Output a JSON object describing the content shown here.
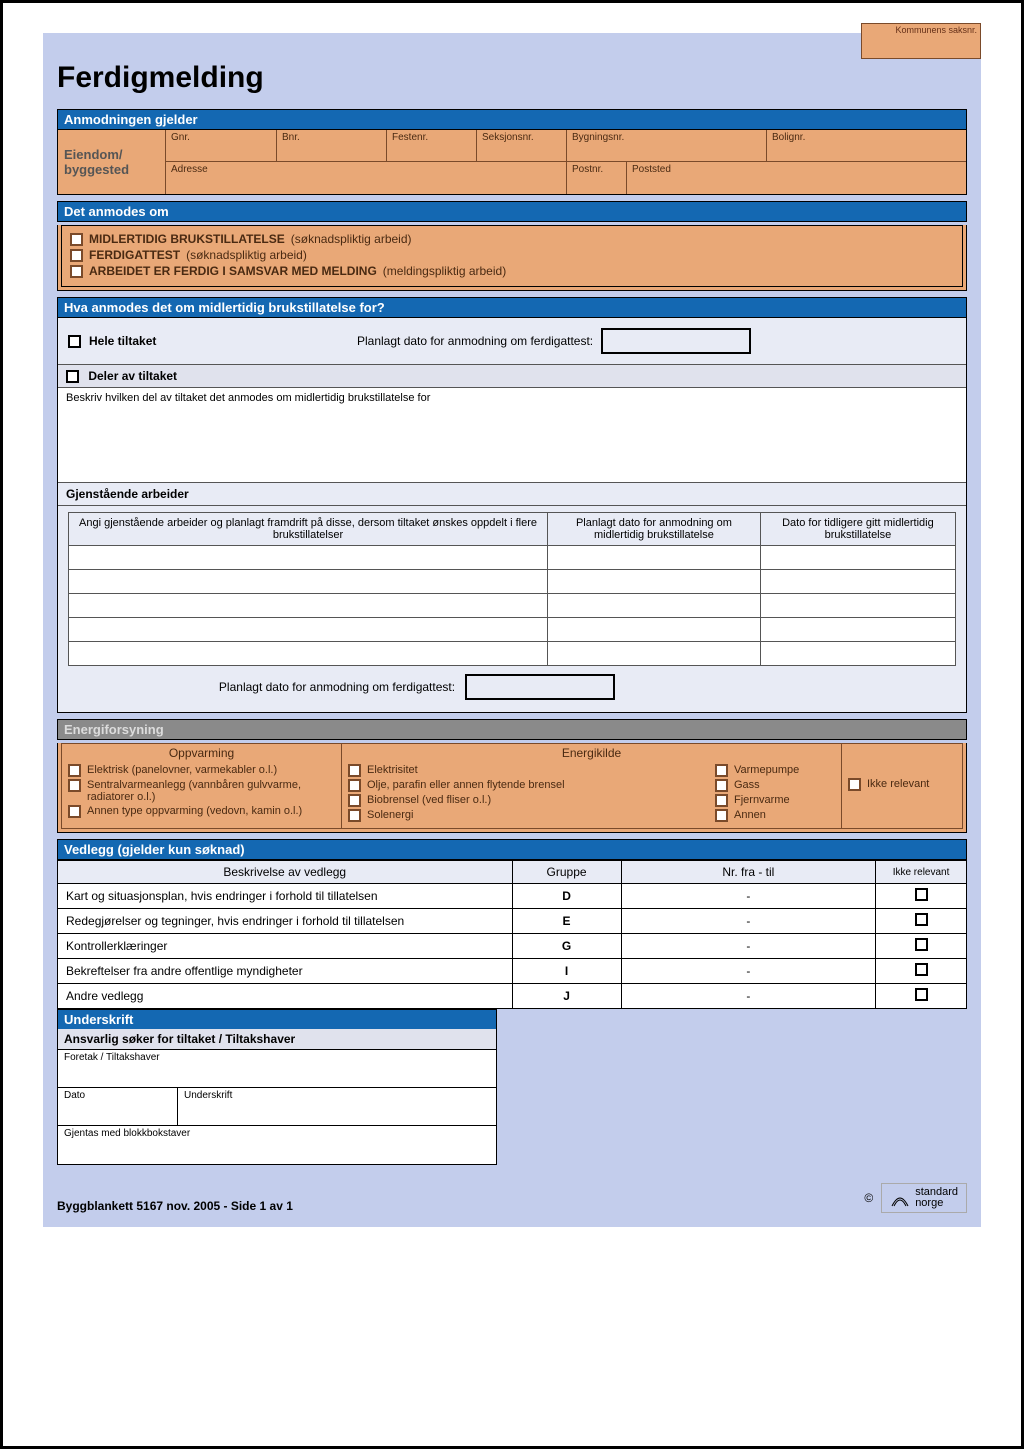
{
  "title": "Ferdigmelding",
  "saksnr_label": "Kommunens saksnr.",
  "anmodningen": {
    "header": "Anmodningen gjelder",
    "eiendom_label": "Eiendom/ byggested",
    "fields_top": [
      "Gnr.",
      "Bnr.",
      "Festenr.",
      "Seksjonsnr.",
      "Bygningsnr.",
      "Bolignr."
    ],
    "fields_bot": [
      "Adresse",
      "Postnr.",
      "Poststed"
    ]
  },
  "anmodes": {
    "header": "Det anmodes om",
    "items": [
      {
        "label": "MIDLERTIDIG BRUKSTILLATELSE",
        "suffix": "(søknadspliktig arbeid)"
      },
      {
        "label": "FERDIGATTEST",
        "suffix": "(søknadspliktig arbeid)"
      },
      {
        "label": "ARBEIDET ER FERDIG I SAMSVAR MED MELDING",
        "suffix": "(meldingspliktig arbeid)"
      }
    ]
  },
  "hva": {
    "header": "Hva anmodes det om midlertidig brukstillatelse for?",
    "hele": "Hele tiltaket",
    "planned_label": "Planlagt dato for anmodning om ferdigattest:",
    "deler": "Deler av tiltaket",
    "beskriv": "Beskriv hvilken del av tiltaket det anmodes om midlertidig brukstillatelse for",
    "gjenstaende": "Gjenstående arbeider",
    "table": {
      "h1": "Angi gjenstående arbeider og planlagt framdrift på disse, dersom tiltaket ønskes oppdelt i flere brukstillatelser",
      "h2": "Planlagt dato for anmodning om midlertidig brukstillatelse",
      "h3": "Dato for tidligere gitt midlertidig brukstillatelse"
    },
    "planned2": "Planlagt dato for anmodning om ferdigattest:"
  },
  "energi": {
    "header": "Energiforsyning",
    "oppvarming_hdr": "Oppvarming",
    "oppvarming": [
      "Elektrisk (panelovner, varmekabler o.l.)",
      "Sentralvarmeanlegg (vannbåren gulvvarme, radiatorer o.l.)",
      "Annen type oppvarming (vedovn, kamin o.l.)"
    ],
    "energikilde_hdr": "Energikilde",
    "energikilde_a": [
      "Elektrisitet",
      "Olje, parafin eller annen flytende brensel",
      "Biobrensel (ved fliser o.l.)",
      "Solenergi"
    ],
    "energikilde_b": [
      "Varmepumpe",
      "Gass",
      "Fjernvarme",
      "Annen"
    ],
    "ikke_relevant": "Ikke relevant"
  },
  "vedlegg": {
    "header": "Vedlegg (gjelder kun søknad)",
    "cols": [
      "Beskrivelse av vedlegg",
      "Gruppe",
      "Nr. fra - til",
      "Ikke relevant"
    ],
    "rows": [
      {
        "desc": "Kart og situasjonsplan, hvis endringer i forhold til tillatelsen",
        "grp": "D",
        "nr": "-"
      },
      {
        "desc": "Redegjørelser og tegninger, hvis endringer i forhold til tillatelsen",
        "grp": "E",
        "nr": "-"
      },
      {
        "desc": "Kontrollerklæringer",
        "grp": "G",
        "nr": "-"
      },
      {
        "desc": "Bekreftelser fra andre offentlige myndigheter",
        "grp": "I",
        "nr": "-"
      },
      {
        "desc": "Andre vedlegg",
        "grp": "J",
        "nr": "-"
      }
    ]
  },
  "underskrift": {
    "header": "Underskrift",
    "sub": "Ansvarlig søker for tiltaket / Tiltakshaver",
    "foretak": "Foretak / Tiltakshaver",
    "dato": "Dato",
    "und": "Underskrift",
    "gjentas": "Gjentas med blokkbokstaver"
  },
  "footer": {
    "text": "Byggblankett  5167  nov. 2005  - Side 1 av 1",
    "copy": "©",
    "logo1": "standard",
    "logo2": "norge"
  }
}
